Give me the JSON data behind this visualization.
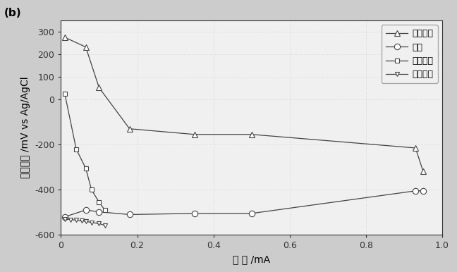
{
  "title": "(b)",
  "xlabel": "电 流 /mA",
  "ylabel": "电极电势 /mV vs Ag/AgCl",
  "xlim": [
    0,
    1.0
  ],
  "ylim": [
    -600,
    350
  ],
  "xticks": [
    0.0,
    0.2,
    0.4,
    0.6,
    0.8,
    1.0
  ],
  "xtick_labels": [
    "0",
    "0.2",
    "0.4",
    "0.6",
    "0.8",
    "1.0"
  ],
  "yticks": [
    -600,
    -400,
    -200,
    0,
    100,
    200,
    300
  ],
  "ytick_labels": [
    "-600",
    "-400",
    "-200",
    "0",
    "100",
    "200",
    "300"
  ],
  "series": [
    {
      "label": "生物阴极",
      "marker": "^",
      "x": [
        0.01,
        0.065,
        0.1,
        0.18,
        0.35,
        0.5,
        0.93,
        0.95
      ],
      "y": [
        275,
        232,
        52,
        -130,
        -155,
        -155,
        -215,
        -318
      ],
      "color": "#444444",
      "linestyle": "-",
      "markersize": 6
    },
    {
      "label": "阳极",
      "marker": "o",
      "x": [
        0.01,
        0.065,
        0.1,
        0.18,
        0.35,
        0.5,
        0.93,
        0.95
      ],
      "y": [
        -520,
        -490,
        -498,
        -510,
        -505,
        -505,
        -405,
        -405
      ],
      "color": "#444444",
      "linestyle": "-",
      "markersize": 6
    },
    {
      "label": "对照阴极",
      "marker": "s",
      "x": [
        0.01,
        0.04,
        0.065,
        0.08,
        0.1,
        0.115
      ],
      "y": [
        25,
        -220,
        -305,
        -400,
        -455,
        -490
      ],
      "color": "#444444",
      "linestyle": "-",
      "markersize": 5
    },
    {
      "label": "对照阳极",
      "marker": "v",
      "x": [
        0.01,
        0.025,
        0.04,
        0.055,
        0.065,
        0.08,
        0.1,
        0.115
      ],
      "y": [
        -530,
        -532,
        -535,
        -538,
        -540,
        -545,
        -550,
        -558
      ],
      "color": "#444444",
      "linestyle": "-",
      "markersize": 5
    }
  ],
  "bg_color": "#f0f0f0",
  "plot_bg": "#f5f5f5",
  "legend_fontsize": 9,
  "axis_label_fontsize": 10,
  "tick_fontsize": 9,
  "title_fontsize": 11
}
